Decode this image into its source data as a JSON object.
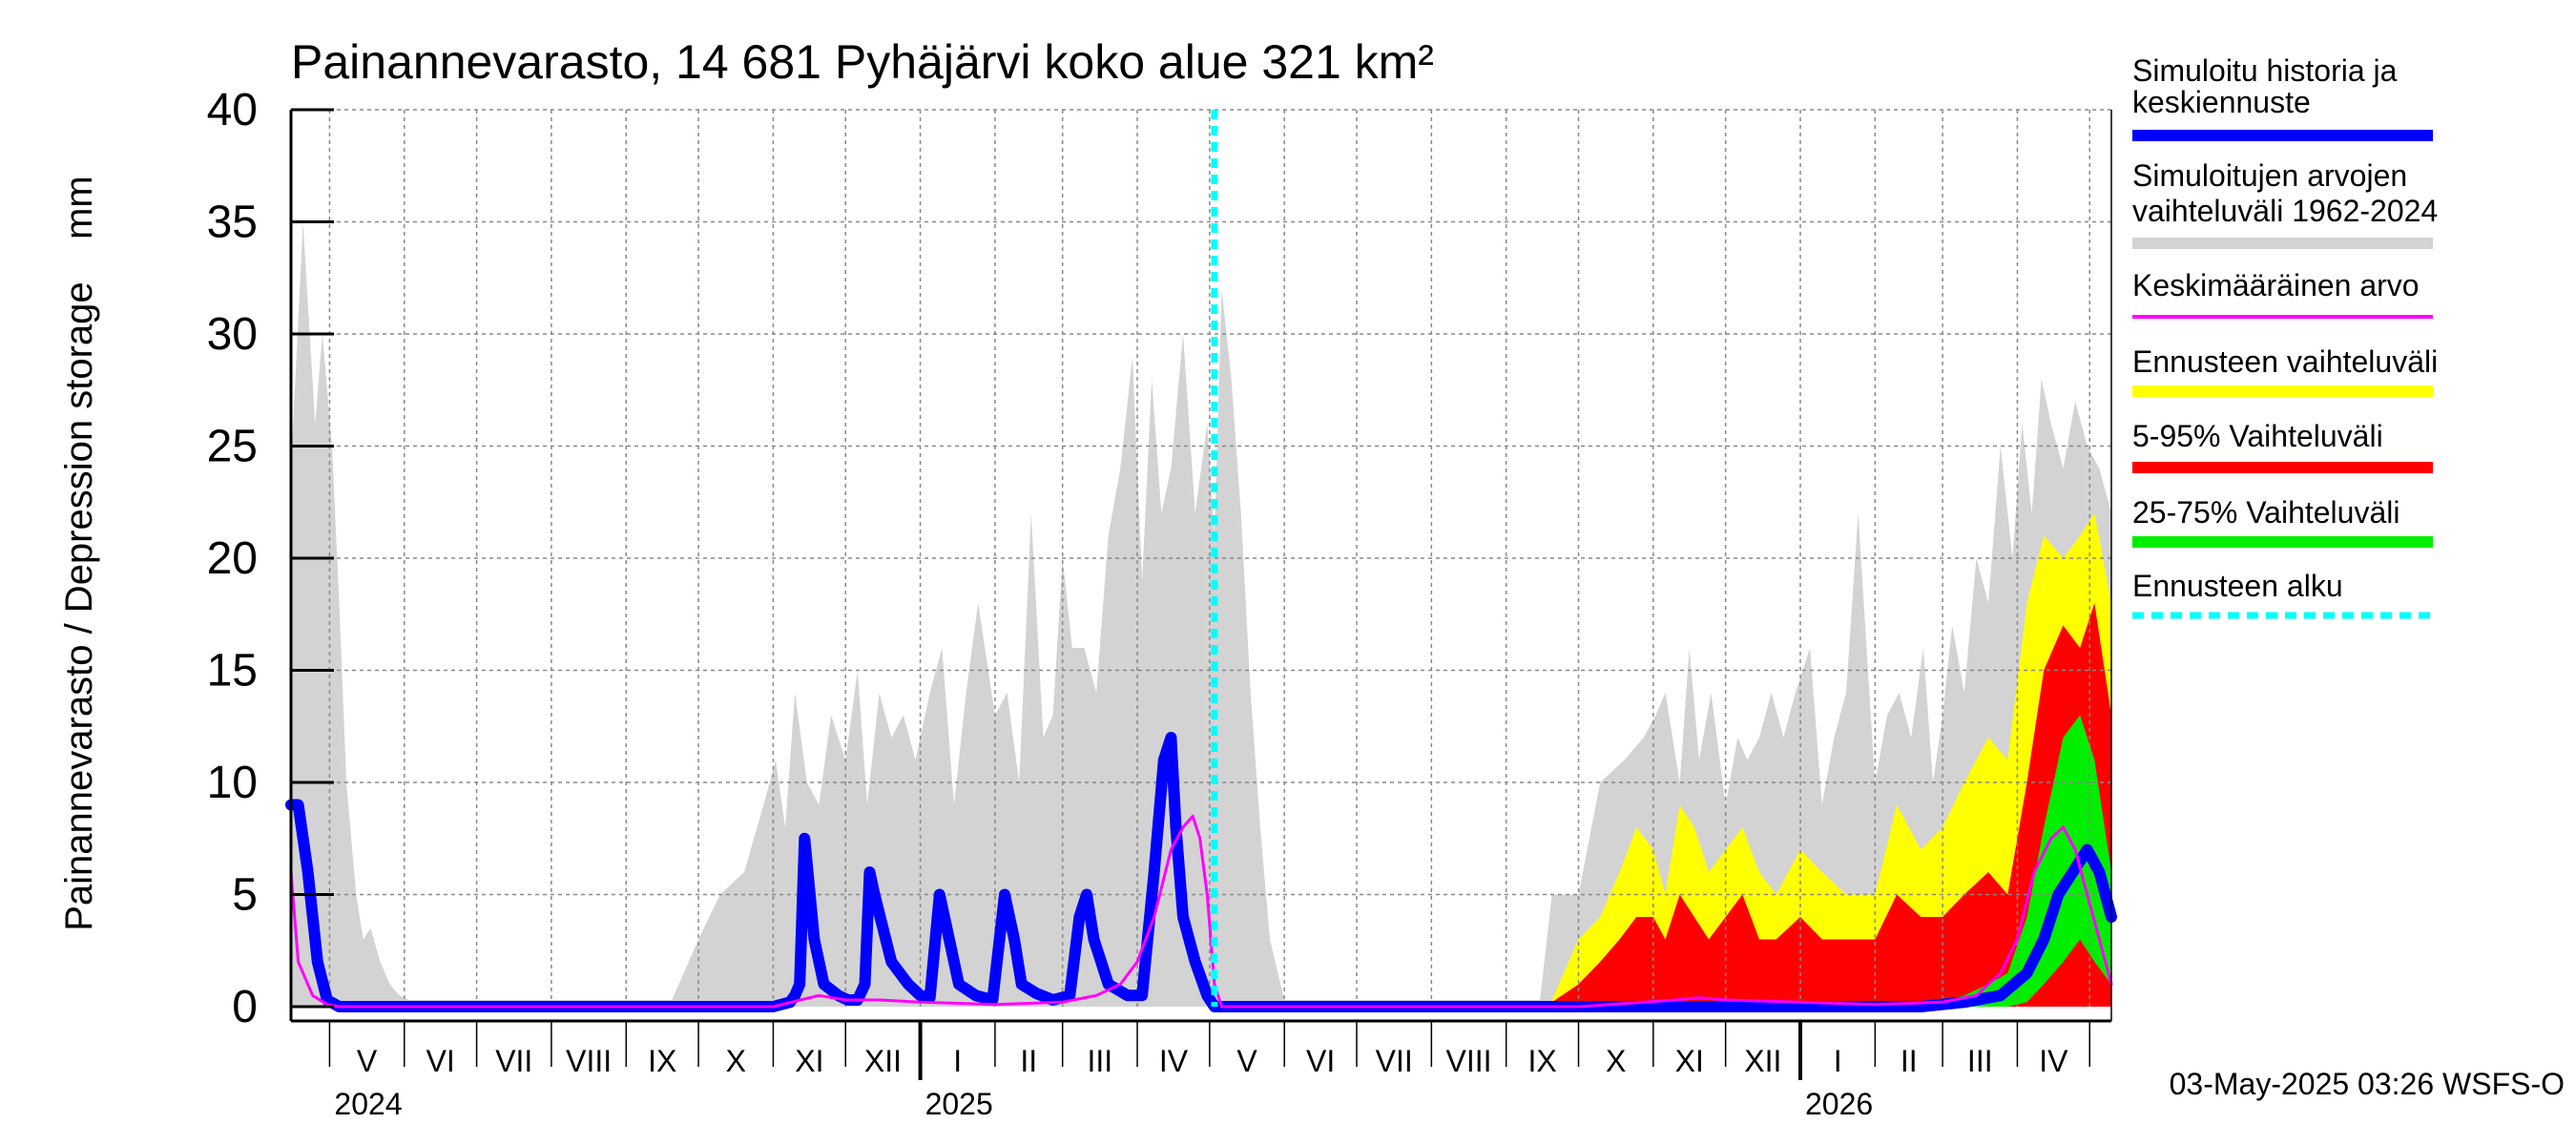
{
  "chart_data": {
    "type": "area",
    "title": "Painannevarasto, 14 681 Pyhäjärvi koko alue 321 km²",
    "ylabel": "Painannevarasto / Depression storage    mm",
    "xlabel": "",
    "ylim": [
      0,
      40
    ],
    "yticks": [
      0,
      5,
      10,
      15,
      20,
      25,
      30,
      35,
      40
    ],
    "grid": true,
    "x_start": "2024-04-15",
    "x_end": "2026-05-10",
    "forecast_start": "2025-05-03",
    "month_labels": [
      "V",
      "VI",
      "VII",
      "VIII",
      "IX",
      "X",
      "XI",
      "XII",
      "I",
      "II",
      "III",
      "IV",
      "V",
      "VI",
      "VII",
      "VIII",
      "IX",
      "X",
      "XI",
      "XII",
      "I",
      "II",
      "III",
      "IV"
    ],
    "year_labels": [
      {
        "label": "2024",
        "date": "2024-05-01"
      },
      {
        "label": "2025",
        "date": "2025-01-01"
      },
      {
        "label": "2026",
        "date": "2026-01-01"
      }
    ],
    "legend": [
      {
        "label": "Simuloitu historia ja keskiennuste",
        "color": "#0000ff",
        "style": "solid"
      },
      {
        "label": "Simuloitujen arvojen vaihteluväli 1962-2024",
        "color": "#d3d3d3",
        "style": "solid"
      },
      {
        "label": "Keskimääräinen arvo",
        "color": "#ff00ff",
        "style": "thin"
      },
      {
        "label": "Ennusteen vaihteluväli",
        "color": "#ffff00",
        "style": "solid"
      },
      {
        "label": "5-95% Vaihteluväli",
        "color": "#ff0000",
        "style": "solid"
      },
      {
        "label": "25-75% Vaihteluväli",
        "color": "#00ee00",
        "style": "solid"
      },
      {
        "label": "Ennusteen alku",
        "color": "#00ffff",
        "style": "dashed"
      }
    ],
    "legend_position": "right",
    "series": [
      {
        "name": "Simuloitujen arvojen vaihteluväli 1962-2024",
        "kind": "band",
        "color": "#d3d3d3",
        "x": [
          "2024-04-15",
          "2024-04-20",
          "2024-04-25",
          "2024-04-28",
          "2024-05-02",
          "2024-05-05",
          "2024-05-08",
          "2024-05-12",
          "2024-05-15",
          "2024-05-18",
          "2024-05-22",
          "2024-05-26",
          "2024-05-30",
          "2024-06-03",
          "2024-09-20",
          "2024-10-01",
          "2024-10-10",
          "2024-10-20",
          "2024-10-28",
          "2024-11-02",
          "2024-11-06",
          "2024-11-10",
          "2024-11-15",
          "2024-11-20",
          "2024-11-25",
          "2024-12-01",
          "2024-12-06",
          "2024-12-10",
          "2024-12-15",
          "2024-12-20",
          "2024-12-25",
          "2024-12-30",
          "2025-01-05",
          "2025-01-10",
          "2025-01-15",
          "2025-01-20",
          "2025-01-25",
          "2025-02-01",
          "2025-02-06",
          "2025-02-11",
          "2025-02-16",
          "2025-02-21",
          "2025-02-25",
          "2025-03-01",
          "2025-03-05",
          "2025-03-10",
          "2025-03-15",
          "2025-03-20",
          "2025-03-25",
          "2025-03-30",
          "2025-04-03",
          "2025-04-07",
          "2025-04-11",
          "2025-04-15",
          "2025-04-20",
          "2025-04-25",
          "2025-04-30",
          "2025-05-03",
          "2025-05-06",
          "2025-05-10",
          "2025-05-14",
          "2025-05-18",
          "2025-05-22",
          "2025-05-26",
          "2025-06-01",
          "2025-09-15",
          "2025-09-20",
          "2025-10-01",
          "2025-10-10",
          "2025-10-20",
          "2025-10-28",
          "2025-11-02",
          "2025-11-06",
          "2025-11-12",
          "2025-11-16",
          "2025-11-20",
          "2025-11-25",
          "2025-12-01",
          "2025-12-06",
          "2025-12-10",
          "2025-12-15",
          "2025-12-20",
          "2025-12-25",
          "2025-12-30",
          "2026-01-05",
          "2026-01-10",
          "2026-01-15",
          "2026-01-20",
          "2026-01-25",
          "2026-02-01",
          "2026-02-06",
          "2026-02-11",
          "2026-02-16",
          "2026-02-21",
          "2026-02-25",
          "2026-03-01",
          "2026-03-05",
          "2026-03-10",
          "2026-03-15",
          "2026-03-20",
          "2026-03-25",
          "2026-03-30",
          "2026-04-03",
          "2026-04-07",
          "2026-04-11",
          "2026-04-15",
          "2026-04-20",
          "2026-04-25",
          "2026-04-30",
          "2026-05-05",
          "2026-05-10"
        ],
        "upper": [
          24,
          35,
          26,
          30,
          25,
          18,
          10,
          5,
          3,
          3.5,
          2,
          1,
          0.5,
          0.3,
          0.3,
          3,
          5,
          6,
          9,
          11,
          8,
          14,
          10,
          9,
          13,
          11,
          15,
          9,
          14,
          12,
          13,
          11,
          14,
          16,
          9,
          14,
          18,
          13,
          14,
          10,
          22,
          12,
          13,
          20,
          16,
          16,
          14,
          21,
          24,
          29,
          19,
          28,
          22,
          24,
          30,
          22,
          26,
          21,
          32,
          28,
          22,
          14,
          8,
          3,
          0.3,
          0.3,
          5,
          5,
          10,
          11,
          12,
          13,
          14,
          10,
          16,
          11,
          14,
          9,
          12,
          11,
          12,
          14,
          12,
          14,
          16,
          9,
          12,
          14,
          22,
          10,
          13,
          14,
          12,
          16,
          10,
          13,
          17,
          14,
          20,
          18,
          25,
          20,
          26,
          22,
          28,
          26,
          24,
          27,
          25,
          24,
          22
        ],
        "lower": [
          0,
          0,
          0,
          0,
          0,
          0,
          0,
          0,
          0,
          0,
          0,
          0,
          0,
          0,
          0,
          0,
          0,
          0,
          0,
          0,
          0,
          0,
          0,
          0,
          0,
          0,
          0,
          0,
          0,
          0,
          0,
          0,
          0,
          0,
          0,
          0,
          0,
          0,
          0,
          0,
          0,
          0,
          0,
          0,
          0,
          0,
          0,
          0,
          0,
          0,
          0,
          0,
          0,
          0,
          0,
          0,
          0,
          0,
          0,
          0,
          0,
          0,
          0,
          0,
          0,
          0,
          0,
          0,
          0,
          0,
          0,
          0,
          0,
          0,
          0,
          0,
          0,
          0,
          0,
          0,
          0,
          0,
          0,
          0,
          0,
          0,
          0,
          0,
          0,
          0,
          0,
          0,
          0,
          0,
          0,
          0,
          0,
          0,
          0,
          0,
          0,
          0,
          0,
          0,
          0,
          0,
          0,
          0,
          0,
          0,
          0
        ]
      },
      {
        "name": "Ennusteen vaihteluväli",
        "kind": "band",
        "color": "#ffff00",
        "x": [
          "2025-09-20",
          "2025-10-01",
          "2025-10-10",
          "2025-10-18",
          "2025-10-25",
          "2025-11-01",
          "2025-11-06",
          "2025-11-12",
          "2025-11-18",
          "2025-11-24",
          "2025-12-01",
          "2025-12-08",
          "2025-12-15",
          "2025-12-22",
          "2026-01-01",
          "2026-01-10",
          "2026-01-20",
          "2026-02-01",
          "2026-02-10",
          "2026-02-20",
          "2026-03-01",
          "2026-03-10",
          "2026-03-20",
          "2026-03-28",
          "2026-04-05",
          "2026-04-12",
          "2026-04-20",
          "2026-04-27",
          "2026-05-03",
          "2026-05-10"
        ],
        "upper": [
          0.3,
          3,
          4,
          6,
          8,
          7,
          5,
          9,
          8,
          6,
          7,
          8,
          6,
          5,
          7,
          6,
          5,
          5,
          9,
          7,
          8,
          10,
          12,
          11,
          18,
          21,
          20,
          21,
          22,
          18
        ],
        "lower": [
          0,
          0,
          0,
          0,
          0,
          0,
          0,
          0,
          0,
          0,
          0,
          0,
          0,
          0,
          0,
          0,
          0,
          0,
          0,
          0,
          0,
          0,
          0,
          0,
          0,
          0,
          0,
          0,
          0,
          0
        ]
      },
      {
        "name": "5-95% Vaihteluväli",
        "kind": "band",
        "color": "#ff0000",
        "x": [
          "2025-09-20",
          "2025-10-01",
          "2025-10-10",
          "2025-10-18",
          "2025-10-25",
          "2025-11-01",
          "2025-11-06",
          "2025-11-12",
          "2025-11-18",
          "2025-11-24",
          "2025-12-01",
          "2025-12-08",
          "2025-12-15",
          "2025-12-22",
          "2026-01-01",
          "2026-01-10",
          "2026-01-20",
          "2026-02-01",
          "2026-02-10",
          "2026-02-20",
          "2026-03-01",
          "2026-03-10",
          "2026-03-20",
          "2026-03-28",
          "2026-04-05",
          "2026-04-12",
          "2026-04-20",
          "2026-04-27",
          "2026-05-03",
          "2026-05-10"
        ],
        "upper": [
          0.2,
          1,
          2,
          3,
          4,
          4,
          3,
          5,
          4,
          3,
          4,
          5,
          3,
          3,
          4,
          3,
          3,
          3,
          5,
          4,
          4,
          5,
          6,
          5,
          10,
          15,
          17,
          16,
          18,
          13
        ],
        "lower": [
          0,
          0,
          0,
          0,
          0,
          0,
          0,
          0,
          0,
          0,
          0,
          0,
          0,
          0,
          0,
          0,
          0,
          0,
          0,
          0,
          0,
          0,
          0,
          0,
          0,
          0,
          0,
          0,
          0,
          0
        ]
      },
      {
        "name": "25-75% Vaihteluväli",
        "kind": "band",
        "color": "#00ee00",
        "x": [
          "2026-02-25",
          "2026-03-10",
          "2026-03-20",
          "2026-03-28",
          "2026-04-05",
          "2026-04-12",
          "2026-04-20",
          "2026-04-27",
          "2026-05-03",
          "2026-05-10"
        ],
        "upper": [
          0.2,
          0.5,
          1,
          1.5,
          4,
          8,
          12,
          13,
          11,
          6
        ],
        "lower": [
          0,
          0,
          0,
          0,
          0.2,
          1,
          2,
          3,
          2,
          1
        ]
      },
      {
        "name": "Simuloitu historia ja keskiennuste",
        "kind": "line",
        "color": "#0000ff",
        "width": 12,
        "x": [
          "2024-04-15",
          "2024-04-18",
          "2024-04-22",
          "2024-04-26",
          "2024-04-30",
          "2024-05-05",
          "2024-11-01",
          "2024-11-08",
          "2024-11-10",
          "2024-11-12",
          "2024-11-14",
          "2024-11-18",
          "2024-11-22",
          "2024-11-28",
          "2024-12-02",
          "2024-12-06",
          "2024-12-09",
          "2024-12-11",
          "2024-12-13",
          "2024-12-20",
          "2024-12-27",
          "2025-01-01",
          "2025-01-05",
          "2025-01-09",
          "2025-01-13",
          "2025-01-17",
          "2025-01-24",
          "2025-01-31",
          "2025-02-05",
          "2025-02-09",
          "2025-02-12",
          "2025-02-18",
          "2025-02-25",
          "2025-03-04",
          "2025-03-08",
          "2025-03-11",
          "2025-03-14",
          "2025-03-20",
          "2025-03-28",
          "2025-04-03",
          "2025-04-08",
          "2025-04-12",
          "2025-04-15",
          "2025-04-17",
          "2025-04-20",
          "2025-04-25",
          "2025-04-30",
          "2025-05-03",
          "2025-05-10",
          "2026-02-20",
          "2026-03-10",
          "2026-03-25",
          "2026-04-05",
          "2026-04-12",
          "2026-04-18",
          "2026-04-24",
          "2026-04-30",
          "2026-05-05",
          "2026-05-10"
        ],
        "y": [
          9,
          9,
          6,
          2,
          0.3,
          0,
          0,
          0.2,
          0.5,
          1,
          7.5,
          3,
          1,
          0.5,
          0.3,
          0.3,
          1,
          6,
          5,
          2,
          1,
          0.5,
          0.4,
          5,
          3,
          1,
          0.5,
          0.3,
          5,
          3,
          1,
          0.6,
          0.3,
          0.5,
          4,
          5,
          3,
          1,
          0.5,
          0.5,
          6,
          11,
          12,
          8,
          4,
          2,
          0.5,
          0,
          0,
          0,
          0.2,
          0.5,
          1.5,
          3,
          5,
          6,
          7,
          6,
          4
        ]
      },
      {
        "name": "Keskimääräinen arvo",
        "kind": "line",
        "color": "#ff00ff",
        "width": 3,
        "x": [
          "2024-04-15",
          "2024-04-18",
          "2024-04-24",
          "2024-04-30",
          "2024-05-05",
          "2024-11-01",
          "2024-11-20",
          "2024-12-01",
          "2024-12-15",
          "2025-01-01",
          "2025-02-01",
          "2025-03-01",
          "2025-03-15",
          "2025-03-25",
          "2025-04-01",
          "2025-04-08",
          "2025-04-15",
          "2025-04-20",
          "2025-04-24",
          "2025-04-27",
          "2025-04-30",
          "2025-05-03",
          "2025-05-06",
          "2025-10-01",
          "2025-11-10",
          "2025-11-20",
          "2025-12-01",
          "2026-01-01",
          "2026-02-01",
          "2026-03-01",
          "2026-03-15",
          "2026-03-25",
          "2026-04-01",
          "2026-04-08",
          "2026-04-15",
          "2026-04-20",
          "2026-04-25",
          "2026-04-30",
          "2026-05-05",
          "2026-05-10"
        ],
        "y": [
          6,
          2,
          0.5,
          0.1,
          0,
          0,
          0.5,
          0.3,
          0.3,
          0.2,
          0.1,
          0.2,
          0.5,
          1,
          2,
          4,
          7,
          8,
          8.5,
          7.5,
          5,
          1,
          0,
          0,
          0.3,
          0.4,
          0.3,
          0.2,
          0.1,
          0.2,
          0.5,
          1.5,
          3,
          6,
          7.5,
          8,
          7,
          5,
          3,
          1
        ]
      }
    ]
  },
  "footer": {
    "timestamp": "03-May-2025 03:26 WSFS-O"
  }
}
